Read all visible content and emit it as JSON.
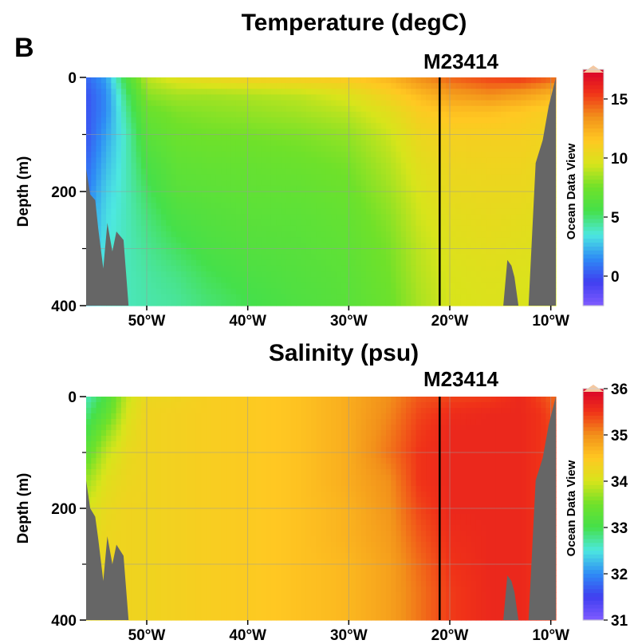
{
  "panel_label": "B",
  "watermark": "Ocean Data View",
  "colors": {
    "land": "#666666",
    "station_line": "#000000",
    "grid": "#9a9a9a",
    "palette": [
      "#7f5bff",
      "#3f3ff0",
      "#2e8cf5",
      "#4de8e0",
      "#45e04a",
      "#6fe12a",
      "#d8e41b",
      "#ffc822",
      "#f2901a",
      "#f03218",
      "#d8002b",
      "#f5c8a0"
    ]
  },
  "chart_data": [
    {
      "type": "heatmap",
      "title": "Temperature (degC)",
      "station": "M23414",
      "station_lon": -21,
      "xlabel": "",
      "ylabel": "Depth (m)",
      "xlim": [
        -56,
        -9.5
      ],
      "ylim": [
        400,
        0
      ],
      "x_ticks": [
        {
          "value": -50,
          "label": "50°W"
        },
        {
          "value": -40,
          "label": "40°W"
        },
        {
          "value": -30,
          "label": "30°W"
        },
        {
          "value": -20,
          "label": "20°W"
        },
        {
          "value": -10,
          "label": "10°W"
        }
      ],
      "y_ticks": [
        {
          "value": 0,
          "label": "0"
        },
        {
          "value": 200,
          "label": "200"
        },
        {
          "value": 400,
          "label": "400"
        }
      ],
      "y_minor_ticks": [
        100,
        300
      ],
      "colorbar": {
        "min": -2.5,
        "max": 17.5,
        "ticks": [
          0,
          5,
          10,
          15
        ]
      },
      "grid": true,
      "field_lon": [
        -56,
        -54,
        -52,
        -50,
        -47,
        -44,
        -40,
        -35,
        -30,
        -26,
        -23,
        -20,
        -16,
        -13,
        -11,
        -9.5
      ],
      "field_depth": [
        0,
        30,
        60,
        100,
        150,
        200,
        250,
        300,
        350,
        400
      ],
      "field_values": [
        [
          0.5,
          2.0,
          6.0,
          9.0,
          10.0,
          10.5,
          11.0,
          11.2,
          11.5,
          12.2,
          13.5,
          14.5,
          15.2,
          15.5,
          15.0,
          14.5
        ],
        [
          0.0,
          1.5,
          5.0,
          8.0,
          8.5,
          8.5,
          8.7,
          9.0,
          9.8,
          11.0,
          12.0,
          13.0,
          13.5,
          13.0,
          12.5,
          12.0
        ],
        [
          0.0,
          1.5,
          4.5,
          7.2,
          7.8,
          8.0,
          8.2,
          8.5,
          9.0,
          10.0,
          11.2,
          11.8,
          11.8,
          11.5,
          11.2,
          11.0
        ],
        [
          0.0,
          2.0,
          4.0,
          6.5,
          7.3,
          7.5,
          7.6,
          7.8,
          8.2,
          9.3,
          10.5,
          11.0,
          11.0,
          11.0,
          10.8,
          10.5
        ],
        [
          0.5,
          2.5,
          4.0,
          5.8,
          6.8,
          7.0,
          7.1,
          7.3,
          7.7,
          8.8,
          10.0,
          10.6,
          10.7,
          10.7,
          10.5,
          10.2
        ],
        [
          1.0,
          3.0,
          4.0,
          5.2,
          6.4,
          6.6,
          6.8,
          6.9,
          7.3,
          8.4,
          9.6,
          10.3,
          10.4,
          10.4,
          10.2,
          10.0
        ],
        [
          1.5,
          3.3,
          4.0,
          4.8,
          5.8,
          6.2,
          6.5,
          6.6,
          7.0,
          8.0,
          9.3,
          10.0,
          10.2,
          10.1,
          10.0,
          9.8
        ],
        [
          2.0,
          3.5,
          4.0,
          4.5,
          5.2,
          5.8,
          6.2,
          6.4,
          6.8,
          7.7,
          9.0,
          9.8,
          10.0,
          9.9,
          9.8,
          9.6
        ],
        [
          2.5,
          3.7,
          4.0,
          4.3,
          4.7,
          5.3,
          5.8,
          6.2,
          6.6,
          7.5,
          8.8,
          9.6,
          9.8,
          9.7,
          9.6,
          9.5
        ],
        [
          3.0,
          3.8,
          4.0,
          4.2,
          4.4,
          4.9,
          5.4,
          6.0,
          6.5,
          7.3,
          8.6,
          9.5,
          9.7,
          9.6,
          9.5,
          9.4
        ]
      ],
      "land": [
        {
          "side": "left",
          "outline": [
            [
              -56,
              160
            ],
            [
              -55.6,
              205
            ],
            [
              -55.1,
              215
            ],
            [
              -54.8,
              265
            ],
            [
              -54.3,
              335
            ],
            [
              -53.9,
              255
            ],
            [
              -53.4,
              305
            ],
            [
              -53,
              270
            ],
            [
              -52.3,
              285
            ],
            [
              -51.8,
              400
            ]
          ]
        },
        {
          "side": "right",
          "outline": [
            [
              -9.5,
              0
            ],
            [
              -10.2,
              50
            ],
            [
              -10.8,
              110
            ],
            [
              -11.5,
              150
            ],
            [
              -12.2,
              400
            ]
          ]
        },
        {
          "side": "seamount",
          "outline": [
            [
              -14.7,
              400
            ],
            [
              -14.3,
              320
            ],
            [
              -13.9,
              330
            ],
            [
              -13.6,
              350
            ],
            [
              -13.2,
              400
            ]
          ]
        }
      ]
    },
    {
      "type": "heatmap",
      "title": "Salinity (psu)",
      "station": "M23414",
      "station_lon": -21,
      "xlabel": "",
      "ylabel": "Depth (m)",
      "xlim": [
        -56,
        -9.5
      ],
      "ylim": [
        400,
        0
      ],
      "x_ticks": [
        {
          "value": -50,
          "label": "50°W"
        },
        {
          "value": -40,
          "label": "40°W"
        },
        {
          "value": -30,
          "label": "30°W"
        },
        {
          "value": -20,
          "label": "20°W"
        },
        {
          "value": -10,
          "label": "10°W"
        }
      ],
      "y_ticks": [
        {
          "value": 0,
          "label": "0"
        },
        {
          "value": 200,
          "label": "200"
        },
        {
          "value": 400,
          "label": "400"
        }
      ],
      "y_minor_ticks": [
        100,
        300
      ],
      "colorbar": {
        "min": 31,
        "max": 36,
        "ticks": [
          31,
          32,
          33,
          34,
          35,
          36
        ]
      },
      "grid": true,
      "field_lon": [
        -56,
        -54,
        -52,
        -50,
        -47,
        -44,
        -40,
        -35,
        -30,
        -26,
        -23,
        -20,
        -16,
        -13,
        -11,
        -9.5
      ],
      "field_depth": [
        0,
        30,
        60,
        100,
        150,
        200,
        250,
        300,
        350,
        400
      ],
      "field_values": [
        [
          32.6,
          33.1,
          33.9,
          34.25,
          34.3,
          34.4,
          34.45,
          34.55,
          34.75,
          35.0,
          35.3,
          35.4,
          35.45,
          35.6,
          35.4,
          35.2
        ],
        [
          32.8,
          33.3,
          34.0,
          34.3,
          34.35,
          34.4,
          34.45,
          34.55,
          34.75,
          35.05,
          35.4,
          35.55,
          35.6,
          35.6,
          35.5,
          35.3
        ],
        [
          33.0,
          33.6,
          34.1,
          34.3,
          34.35,
          34.4,
          34.45,
          34.55,
          34.75,
          35.1,
          35.45,
          35.6,
          35.6,
          35.6,
          35.5,
          35.4
        ],
        [
          33.3,
          33.9,
          34.2,
          34.3,
          34.35,
          34.4,
          34.45,
          34.55,
          34.75,
          35.15,
          35.5,
          35.6,
          35.6,
          35.6,
          35.5,
          35.4
        ],
        [
          33.7,
          34.1,
          34.25,
          34.3,
          34.35,
          34.4,
          34.45,
          34.55,
          34.75,
          35.0,
          35.5,
          35.6,
          35.6,
          35.6,
          35.5,
          35.4
        ],
        [
          34.0,
          34.2,
          34.3,
          34.3,
          34.35,
          34.4,
          34.45,
          34.55,
          34.7,
          34.95,
          35.4,
          35.6,
          35.6,
          35.6,
          35.5,
          35.4
        ],
        [
          34.1,
          34.25,
          34.3,
          34.3,
          34.35,
          34.4,
          34.45,
          34.55,
          34.7,
          34.9,
          35.3,
          35.55,
          35.6,
          35.6,
          35.5,
          35.4
        ],
        [
          34.15,
          34.25,
          34.3,
          34.3,
          34.35,
          34.4,
          34.45,
          34.55,
          34.65,
          34.85,
          35.2,
          35.5,
          35.6,
          35.6,
          35.5,
          35.4
        ],
        [
          34.2,
          34.25,
          34.3,
          34.3,
          34.35,
          34.4,
          34.45,
          34.55,
          34.65,
          34.85,
          35.15,
          35.45,
          35.6,
          35.6,
          35.5,
          35.4
        ],
        [
          34.2,
          34.25,
          34.3,
          34.3,
          34.35,
          34.4,
          34.45,
          34.55,
          34.65,
          34.85,
          35.15,
          35.45,
          35.6,
          35.6,
          35.5,
          35.4
        ]
      ],
      "land": [
        {
          "side": "left",
          "outline": [
            [
              -56,
              150
            ],
            [
              -55.6,
              200
            ],
            [
              -55.1,
              215
            ],
            [
              -54.8,
              255
            ],
            [
              -54.3,
              330
            ],
            [
              -53.9,
              250
            ],
            [
              -53.4,
              300
            ],
            [
              -53,
              265
            ],
            [
              -52.3,
              285
            ],
            [
              -51.8,
              400
            ]
          ]
        },
        {
          "side": "right",
          "outline": [
            [
              -9.5,
              0
            ],
            [
              -10.2,
              50
            ],
            [
              -10.8,
              110
            ],
            [
              -11.5,
              150
            ],
            [
              -12.2,
              400
            ]
          ]
        },
        {
          "side": "seamount",
          "outline": [
            [
              -14.7,
              400
            ],
            [
              -14.3,
              320
            ],
            [
              -13.9,
              330
            ],
            [
              -13.6,
              350
            ],
            [
              -13.2,
              400
            ]
          ]
        }
      ]
    }
  ]
}
